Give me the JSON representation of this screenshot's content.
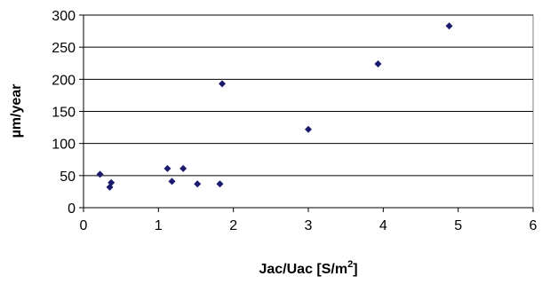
{
  "chart_data": {
    "type": "scatter",
    "xlabel": "Jac/Uac [S/m",
    "xlabel_superscript": "2",
    "xlabel_suffix": "]",
    "ylabel": "µm/year",
    "xlim": [
      0,
      6
    ],
    "ylim": [
      0,
      300
    ],
    "xticks": [
      "0",
      "1",
      "2",
      "3",
      "4",
      "5",
      "6"
    ],
    "yticks": [
      "0",
      "50",
      "100",
      "150",
      "200",
      "250",
      "300"
    ],
    "grid": "horizontal",
    "marker": "diamond",
    "marker_color": "#1a1a6e",
    "points": [
      {
        "x": 0.22,
        "y": 52
      },
      {
        "x": 0.35,
        "y": 32
      },
      {
        "x": 0.37,
        "y": 39
      },
      {
        "x": 1.12,
        "y": 61
      },
      {
        "x": 1.18,
        "y": 41
      },
      {
        "x": 1.33,
        "y": 61
      },
      {
        "x": 1.52,
        "y": 37
      },
      {
        "x": 1.82,
        "y": 37
      },
      {
        "x": 1.85,
        "y": 193
      },
      {
        "x": 3.0,
        "y": 122
      },
      {
        "x": 3.93,
        "y": 224
      },
      {
        "x": 4.88,
        "y": 283
      }
    ]
  }
}
